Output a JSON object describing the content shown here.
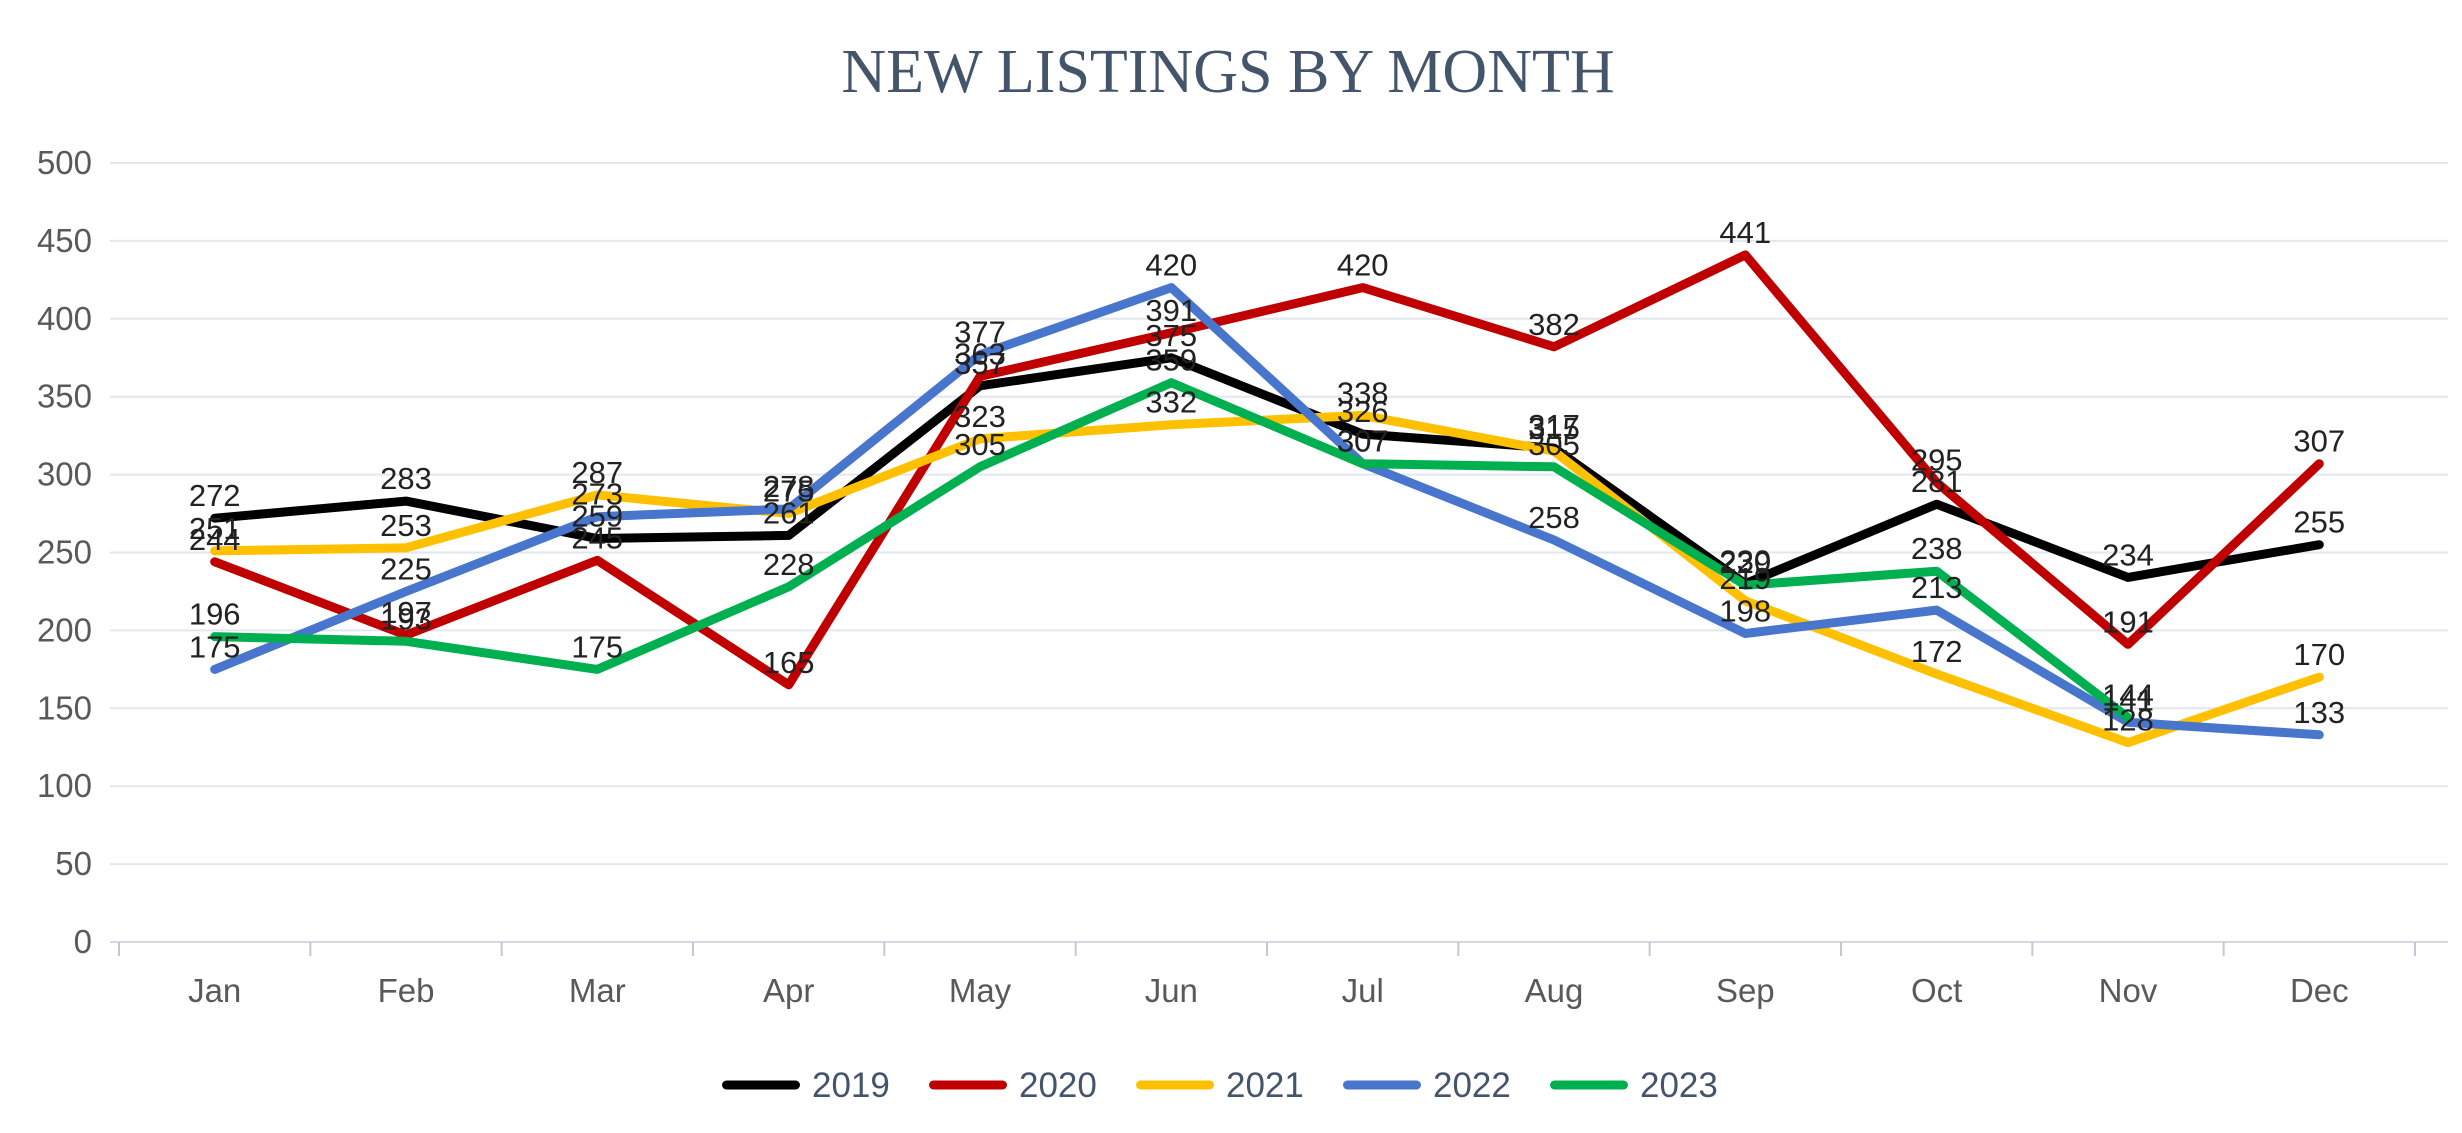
{
  "chart_data": {
    "type": "line",
    "title": "NEW LISTINGS BY MONTH",
    "categories": [
      "Jan",
      "Feb",
      "Mar",
      "Apr",
      "May",
      "Jun",
      "Jul",
      "Aug",
      "Sep",
      "Oct",
      "Nov",
      "Dec"
    ],
    "series": [
      {
        "name": "2019",
        "color": "#000000",
        "values": [
          272,
          283,
          259,
          261,
          357,
          375,
          326,
          317,
          230,
          281,
          234,
          255
        ]
      },
      {
        "name": "2020",
        "color": "#C00000",
        "values": [
          244,
          197,
          245,
          165,
          363,
          391,
          420,
          382,
          441,
          295,
          191,
          307
        ]
      },
      {
        "name": "2021",
        "color": "#FFC000",
        "values": [
          251,
          253,
          287,
          275,
          323,
          332,
          338,
          315,
          219,
          172,
          128,
          170
        ]
      },
      {
        "name": "2022",
        "color": "#4876CC",
        "values": [
          175,
          225,
          273,
          278,
          377,
          420,
          307,
          258,
          198,
          213,
          141,
          133
        ]
      },
      {
        "name": "2023",
        "color": "#00B050",
        "values": [
          196,
          193,
          175,
          228,
          305,
          359,
          307,
          305,
          229,
          238,
          144,
          null
        ]
      }
    ],
    "ylim": [
      0,
      500
    ],
    "ytick_step": 50,
    "y_tick_labels": [
      "0",
      "50",
      "100",
      "150",
      "200",
      "250",
      "300",
      "350",
      "400",
      "450",
      "500"
    ],
    "grid": true,
    "data_labels": true,
    "legend_position": "bottom"
  },
  "colors": {
    "title": "#44546A",
    "axis_label": "#595959",
    "legend_label": "#44546A",
    "data_label": "#222222",
    "grid": "#E2E6EE",
    "zero_line": "#D3D8E2",
    "tick": "#C3C8D4",
    "background": "#FFFFFF"
  }
}
